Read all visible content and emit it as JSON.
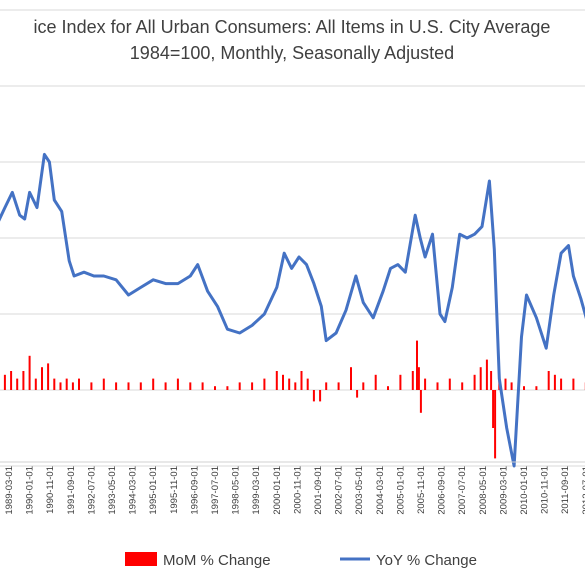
{
  "chart_data": {
    "type": "bar+line",
    "title_lines": [
      "ice Index for All Urban Consumers: All Items in U.S. City Average",
      "1984=100, Monthly, Seasonally Adjusted"
    ],
    "xlabel": "",
    "ylabel": "",
    "grid": true,
    "legend_position": "bottom",
    "x_tick_labels": [
      "1989-03-01",
      "1990-01-01",
      "1990-11-01",
      "1991-09-01",
      "1992-07-01",
      "1993-05-01",
      "1994-03-01",
      "1995-01-01",
      "1995-11-01",
      "1996-09-01",
      "1997-07-01",
      "1998-05-01",
      "1999-03-01",
      "2000-01-01",
      "2000-11-01",
      "2001-09-01",
      "2002-07-01",
      "2003-05-01",
      "2004-03-01",
      "2005-01-01",
      "2005-11-01",
      "2006-09-01",
      "2007-07-01",
      "2008-05-01",
      "2009-03-01",
      "2010-01-01",
      "2010-11-01",
      "2011-09-01",
      "2012-07-01",
      "2013-05-01"
    ],
    "y_gridlines": [
      10,
      8,
      6,
      4,
      2,
      0,
      -2
    ],
    "ylim": [
      -3,
      11
    ],
    "series": [
      {
        "name": "MoM % Change",
        "type": "bar",
        "color": "#ff0000",
        "x": [
          1988.5,
          1988.75,
          1989.0,
          1989.25,
          1989.5,
          1989.75,
          1990.0,
          1990.25,
          1990.5,
          1990.75,
          1991.0,
          1991.25,
          1991.5,
          1991.75,
          1992.0,
          1992.5,
          1993.0,
          1993.5,
          1994.0,
          1994.5,
          1995.0,
          1995.5,
          1996.0,
          1996.5,
          1997.0,
          1997.5,
          1998.0,
          1998.5,
          1999.0,
          1999.5,
          2000.0,
          2000.25,
          2000.5,
          2000.75,
          2001.0,
          2001.25,
          2001.5,
          2001.75,
          2002.0,
          2002.5,
          2003.0,
          2003.25,
          2003.5,
          2004.0,
          2004.5,
          2005.0,
          2005.5,
          2005.67,
          2005.75,
          2005.83,
          2006.0,
          2006.5,
          2007.0,
          2007.5,
          2008.0,
          2008.25,
          2008.5,
          2008.67,
          2008.75,
          2008.83,
          2009.0,
          2009.25,
          2009.5,
          2010.0,
          2010.5,
          2011.0,
          2011.25,
          2011.5,
          2012.0,
          2012.5,
          2013.0,
          2013.25
        ],
        "values": [
          0.4,
          0.5,
          0.4,
          0.5,
          0.3,
          0.5,
          0.9,
          0.3,
          0.6,
          0.7,
          0.3,
          0.2,
          0.3,
          0.2,
          0.3,
          0.2,
          0.3,
          0.2,
          0.2,
          0.2,
          0.3,
          0.2,
          0.3,
          0.2,
          0.2,
          0.1,
          0.1,
          0.2,
          0.2,
          0.3,
          0.5,
          0.4,
          0.3,
          0.2,
          0.5,
          0.3,
          -0.3,
          -0.3,
          0.2,
          0.2,
          0.6,
          -0.2,
          0.2,
          0.4,
          0.1,
          0.4,
          0.5,
          1.3,
          0.6,
          -0.6,
          0.3,
          0.2,
          0.3,
          0.2,
          0.4,
          0.6,
          0.8,
          0.5,
          -1.0,
          -1.8,
          0.4,
          0.3,
          0.2,
          0.1,
          0.1,
          0.5,
          0.4,
          0.3,
          0.3,
          0.2,
          0.2,
          -0.3
        ]
      },
      {
        "name": "YoY % Change",
        "type": "line",
        "color": "#4472c4",
        "x": [
          1988.5,
          1989.0,
          1989.3,
          1989.6,
          1989.8,
          1990.0,
          1990.3,
          1990.6,
          1990.8,
          1991.0,
          1991.3,
          1991.6,
          1991.8,
          1992.2,
          1992.6,
          1993.0,
          1993.5,
          1994.0,
          1994.5,
          1995.0,
          1995.5,
          1996.0,
          1996.5,
          1996.8,
          1997.2,
          1997.6,
          1998.0,
          1998.5,
          1999.0,
          1999.5,
          2000.0,
          2000.3,
          2000.6,
          2000.9,
          2001.2,
          2001.5,
          2001.8,
          2002.0,
          2002.4,
          2002.8,
          2003.2,
          2003.5,
          2003.9,
          2004.3,
          2004.6,
          2004.9,
          2005.2,
          2005.6,
          2005.8,
          2006.0,
          2006.3,
          2006.6,
          2006.8,
          2007.1,
          2007.4,
          2007.7,
          2008.0,
          2008.3,
          2008.6,
          2008.8,
          2009.0,
          2009.3,
          2009.6,
          2009.9,
          2010.1,
          2010.5,
          2010.9,
          2011.2,
          2011.5,
          2011.8,
          2012.0,
          2012.3,
          2012.6,
          2012.9,
          2013.2,
          2013.5
        ],
        "values": [
          4.1,
          4.8,
          5.2,
          4.6,
          4.5,
          5.2,
          4.8,
          6.2,
          6.0,
          5.0,
          4.7,
          3.4,
          3.0,
          3.1,
          3.0,
          3.0,
          2.9,
          2.5,
          2.7,
          2.9,
          2.8,
          2.8,
          3.0,
          3.3,
          2.6,
          2.2,
          1.6,
          1.5,
          1.7,
          2.0,
          2.7,
          3.6,
          3.2,
          3.5,
          3.3,
          2.8,
          2.2,
          1.3,
          1.5,
          2.1,
          3.0,
          2.3,
          1.9,
          2.6,
          3.2,
          3.3,
          3.1,
          4.6,
          4.0,
          3.5,
          4.1,
          2.0,
          1.8,
          2.7,
          4.1,
          4.0,
          4.1,
          4.3,
          5.5,
          3.7,
          0.3,
          -1.0,
          -2.0,
          1.4,
          2.5,
          1.9,
          1.1,
          2.5,
          3.6,
          3.8,
          3.0,
          2.4,
          1.7,
          1.9,
          1.5,
          1.8
        ]
      }
    ]
  }
}
